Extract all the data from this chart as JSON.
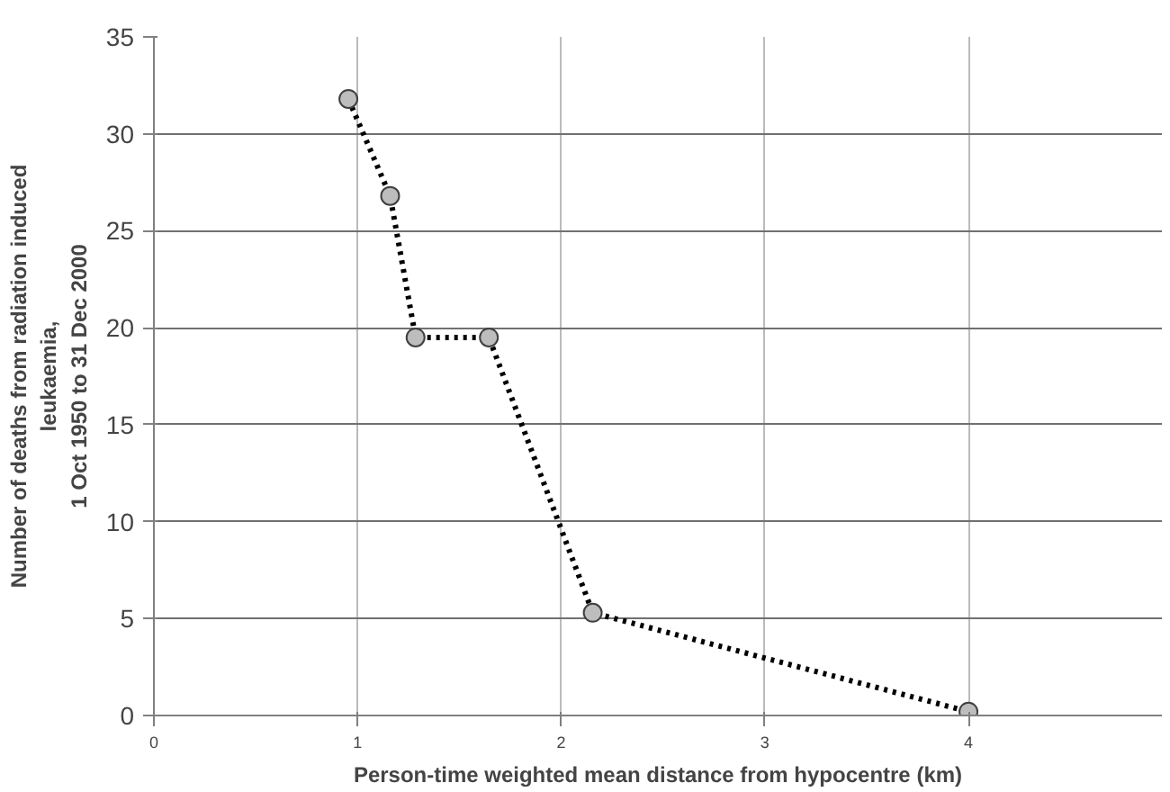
{
  "chart_data": {
    "type": "line",
    "xlabel": "Person-time weighted mean distance from hypocentre (km)",
    "ylabel": "Number of deaths from radiation induced\nleukaemia,\n1 Oct 1950 to 31 Dec 2000",
    "x": [
      0.955,
      1.16,
      1.285,
      1.645,
      2.155,
      4.0
    ],
    "series": [
      {
        "color": "#000000",
        "values": [
          31.8,
          26.8,
          19.5,
          19.5,
          5.3,
          0.2
        ]
      }
    ],
    "xlim": [
      0,
      4.95
    ],
    "xticks": [
      0,
      1,
      2,
      3,
      4
    ],
    "ylim": [
      0,
      35
    ],
    "yticks": [
      0,
      5,
      10,
      15,
      20,
      25,
      30,
      35
    ],
    "grid": true,
    "marker": "circle",
    "line_style": "dotted"
  }
}
